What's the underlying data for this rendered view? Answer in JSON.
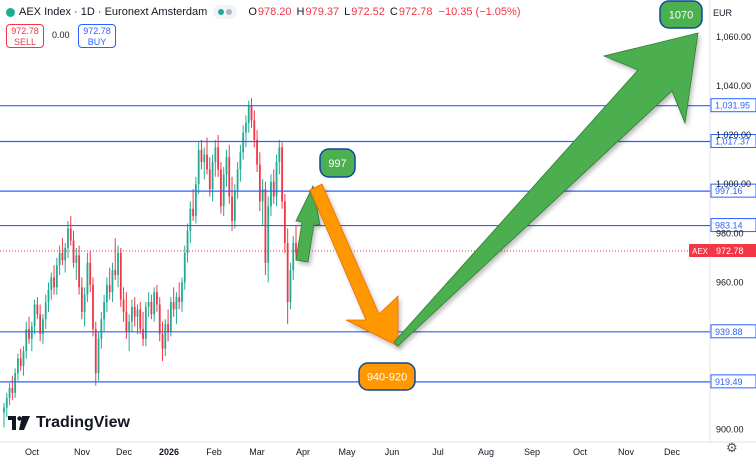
{
  "header": {
    "title": "AEX Index · 1D · Euronext Amsterdam",
    "open_label": "O",
    "open": "978.20",
    "high_label": "H",
    "high": "979.37",
    "low_label": "L",
    "low": "972.52",
    "close_label": "C",
    "close": "972.78",
    "change": "−10.35 (−1.05%)"
  },
  "trade": {
    "sell_price": "972.78",
    "sell_label": "SELL",
    "spread": "0.00",
    "buy_price": "972.78",
    "buy_label": "BUY"
  },
  "currency": "EUR",
  "branding": {
    "name": "TradingView"
  },
  "colors": {
    "up": "#22ab94",
    "down": "#f23645",
    "hline": "#2962ff",
    "arrow_green": "#4caf50",
    "arrow_orange": "#ff9800"
  },
  "chart_data": {
    "type": "candlestick",
    "symbol": "AEX",
    "ylim": [
      895,
      1075
    ],
    "y_ticks": [
      900,
      960,
      980,
      1000,
      1020,
      1040,
      1060
    ],
    "x_ticks": [
      "Oct",
      "Nov",
      "Dec",
      "2026",
      "Feb",
      "Mar",
      "Apr",
      "May",
      "Jun",
      "Jul",
      "Aug",
      "Sep",
      "Oct",
      "Nov",
      "Dec"
    ],
    "last_price": 972.78,
    "last_price_label": "AEX",
    "horizontal_levels": [
      {
        "value": 1031.95,
        "label": "1,031.95"
      },
      {
        "value": 1017.37,
        "label": "1,017.37"
      },
      {
        "value": 997.16,
        "label": "997.16"
      },
      {
        "value": 983.14,
        "label": "983.14"
      },
      {
        "value": 939.88,
        "label": "939.88"
      },
      {
        "value": 919.49,
        "label": "919.49"
      }
    ],
    "annotations": [
      {
        "text": "997",
        "color": "green"
      },
      {
        "text": "940-920",
        "color": "orange"
      },
      {
        "text": "1070",
        "color": "green"
      }
    ],
    "candles": [
      [
        907,
        911,
        901,
        909
      ],
      [
        909,
        915,
        905,
        913
      ],
      [
        913,
        919,
        910,
        917
      ],
      [
        917,
        922,
        912,
        915
      ],
      [
        915,
        925,
        913,
        923
      ],
      [
        923,
        931,
        920,
        929
      ],
      [
        929,
        933,
        924,
        926
      ],
      [
        926,
        934,
        922,
        932
      ],
      [
        932,
        944,
        929,
        941
      ],
      [
        941,
        946,
        935,
        937
      ],
      [
        937,
        944,
        932,
        942
      ],
      [
        942,
        953,
        939,
        951
      ],
      [
        951,
        954,
        945,
        947
      ],
      [
        947,
        951,
        936,
        939
      ],
      [
        939,
        947,
        935,
        945
      ],
      [
        945,
        955,
        941,
        952
      ],
      [
        952,
        960,
        948,
        957
      ],
      [
        957,
        964,
        953,
        962
      ],
      [
        962,
        967,
        955,
        958
      ],
      [
        958,
        970,
        955,
        967
      ],
      [
        967,
        975,
        963,
        972
      ],
      [
        972,
        978,
        967,
        969
      ],
      [
        969,
        976,
        964,
        974
      ],
      [
        974,
        985,
        970,
        982
      ],
      [
        982,
        987,
        975,
        977
      ],
      [
        977,
        981,
        966,
        968
      ],
      [
        968,
        974,
        961,
        971
      ],
      [
        971,
        975,
        955,
        958
      ],
      [
        958,
        962,
        945,
        948
      ],
      [
        948,
        958,
        942,
        955
      ],
      [
        955,
        972,
        952,
        968
      ],
      [
        968,
        973,
        956,
        959
      ],
      [
        959,
        962,
        938,
        941
      ],
      [
        941,
        944,
        918,
        923
      ],
      [
        923,
        940,
        920,
        937
      ],
      [
        937,
        948,
        933,
        945
      ],
      [
        945,
        955,
        940,
        952
      ],
      [
        952,
        962,
        948,
        959
      ],
      [
        959,
        966,
        953,
        956
      ],
      [
        956,
        968,
        952,
        965
      ],
      [
        965,
        978,
        961,
        963
      ],
      [
        963,
        975,
        958,
        972
      ],
      [
        972,
        974,
        950,
        953
      ],
      [
        953,
        958,
        944,
        948
      ],
      [
        948,
        956,
        937,
        940
      ],
      [
        940,
        947,
        932,
        944
      ],
      [
        944,
        953,
        940,
        950
      ],
      [
        950,
        954,
        942,
        946
      ],
      [
        946,
        951,
        939,
        949
      ],
      [
        949,
        952,
        939,
        941
      ],
      [
        941,
        948,
        934,
        937
      ],
      [
        937,
        952,
        934,
        950
      ],
      [
        950,
        956,
        946,
        952
      ],
      [
        952,
        955,
        945,
        947
      ],
      [
        947,
        958,
        944,
        956
      ],
      [
        956,
        959,
        948,
        951
      ],
      [
        951,
        954,
        936,
        939
      ],
      [
        939,
        944,
        928,
        933
      ],
      [
        933,
        945,
        930,
        943
      ],
      [
        943,
        949,
        936,
        940
      ],
      [
        940,
        954,
        938,
        952
      ],
      [
        952,
        958,
        946,
        949
      ],
      [
        949,
        956,
        943,
        954
      ],
      [
        954,
        960,
        949,
        952
      ],
      [
        952,
        962,
        948,
        960
      ],
      [
        960,
        975,
        957,
        972
      ],
      [
        972,
        984,
        968,
        981
      ],
      [
        981,
        993,
        976,
        990
      ],
      [
        990,
        998,
        985,
        987
      ],
      [
        987,
        1003,
        984,
        1000
      ],
      [
        1000,
        1017,
        996,
        1014
      ],
      [
        1014,
        1018,
        1006,
        1009
      ],
      [
        1009,
        1015,
        1002,
        1012
      ],
      [
        1012,
        1019,
        1004,
        1006
      ],
      [
        1006,
        1011,
        995,
        998
      ],
      [
        998,
        1012,
        993,
        1009
      ],
      [
        1009,
        1018,
        1003,
        1015
      ],
      [
        1015,
        1020,
        1003,
        1006
      ],
      [
        1006,
        1009,
        988,
        991
      ],
      [
        991,
        1007,
        987,
        1004
      ],
      [
        1004,
        1014,
        999,
        1011
      ],
      [
        1011,
        1016,
        992,
        995
      ],
      [
        995,
        1003,
        981,
        985
      ],
      [
        985,
        1000,
        982,
        997
      ],
      [
        997,
        1009,
        994,
        1006
      ],
      [
        1006,
        1016,
        1001,
        1013
      ],
      [
        1013,
        1024,
        1010,
        1021
      ],
      [
        1021,
        1028,
        1015,
        1025
      ],
      [
        1025,
        1034,
        1021,
        1032
      ],
      [
        1032,
        1035,
        1023,
        1026
      ],
      [
        1026,
        1030,
        1015,
        1018
      ],
      [
        1018,
        1022,
        1005,
        1008
      ],
      [
        1008,
        1013,
        989,
        993
      ],
      [
        993,
        1002,
        983,
        998
      ],
      [
        998,
        1001,
        963,
        968
      ],
      [
        968,
        995,
        960,
        991
      ],
      [
        991,
        1004,
        987,
        1001
      ],
      [
        1001,
        1006,
        992,
        995
      ],
      [
        995,
        1012,
        991,
        1009
      ],
      [
        1009,
        1018,
        1004,
        1015
      ],
      [
        1015,
        1017,
        990,
        993
      ],
      [
        993,
        996,
        972,
        976
      ],
      [
        976,
        982,
        943,
        952
      ],
      [
        952,
        968,
        949,
        965
      ],
      [
        965,
        979,
        961,
        976
      ],
      [
        976,
        983,
        969,
        972
      ]
    ]
  }
}
